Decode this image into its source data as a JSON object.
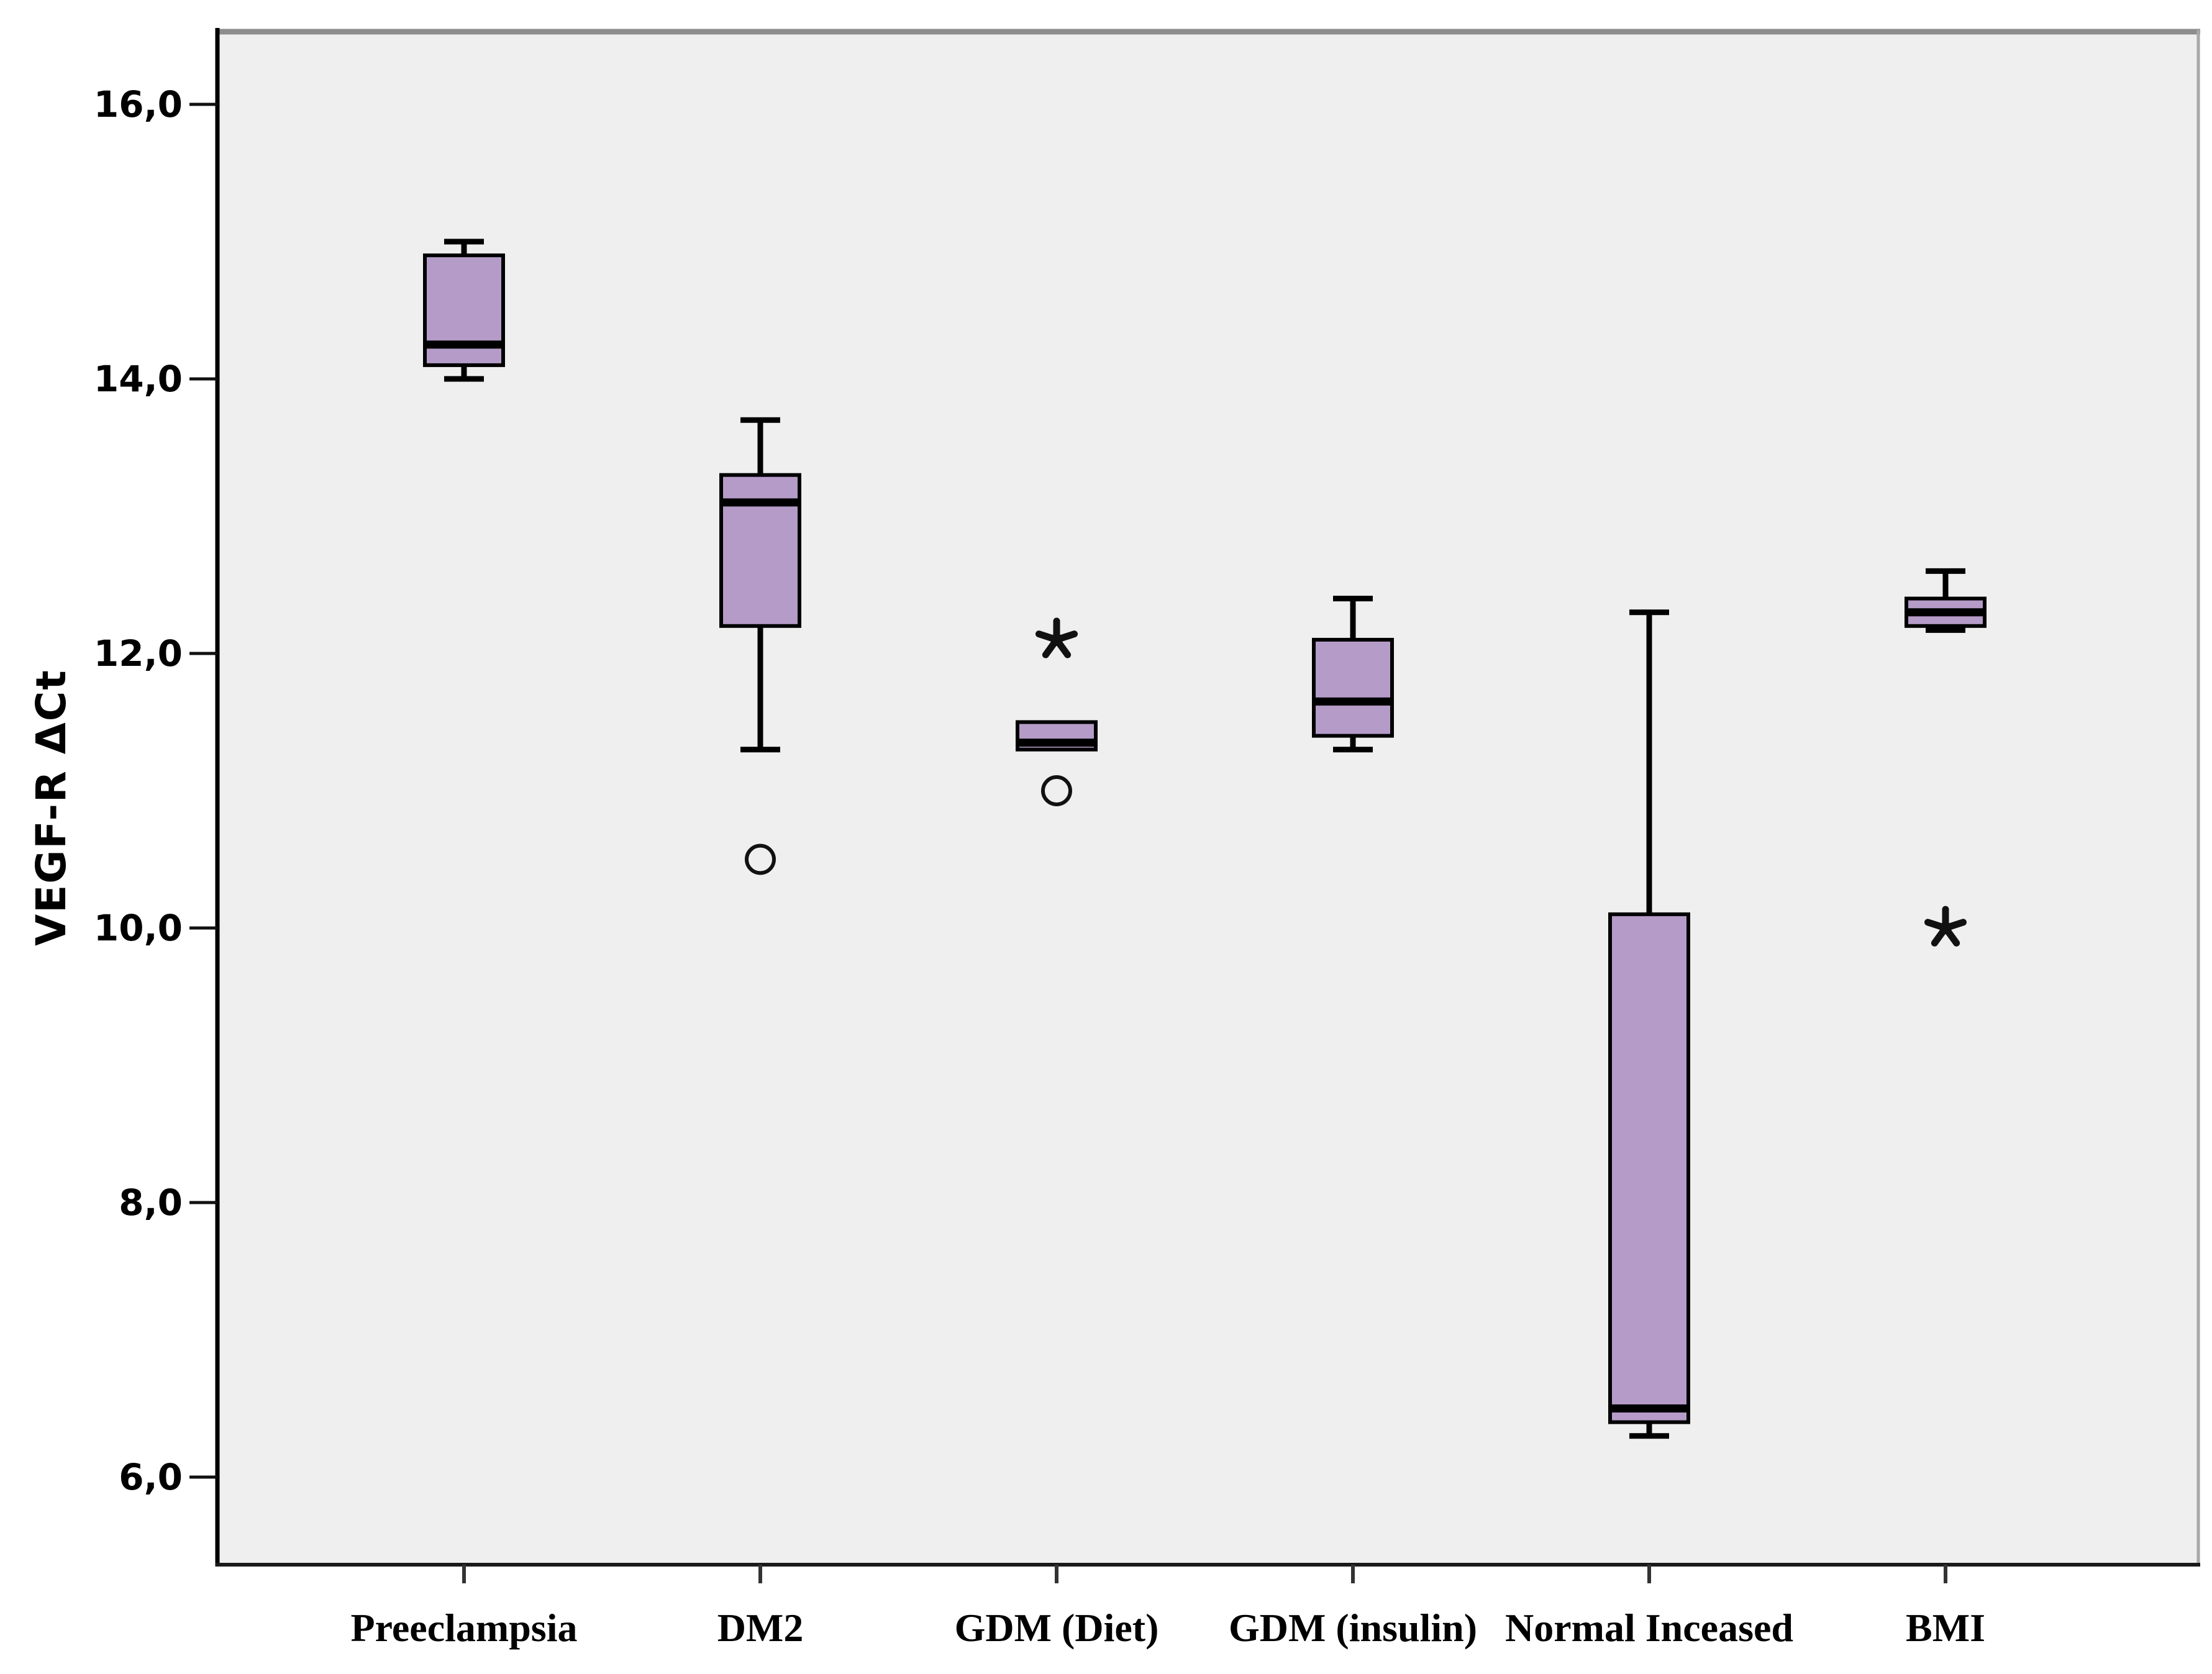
{
  "page": {
    "background": "#ffffff",
    "plot_background": "#efefef"
  },
  "chart_data": {
    "type": "boxplot",
    "title": "",
    "xlabel": "",
    "ylabel": "VEGF-R ΔCt",
    "ylim": [
      5.35,
      16.55
    ],
    "yticks": [
      6,
      8,
      10,
      12,
      14,
      16
    ],
    "ytick_labels": [
      "6,0",
      "8,0",
      "10,0",
      "12,0",
      "14,0",
      "16,0"
    ],
    "decimal_separator": ",",
    "grid": "off",
    "legend": "none",
    "categories": [
      "Preeclampsia",
      "DM2",
      "GDM (Diet)",
      "GDM (insulin)",
      "Normal Inceased",
      "BMI"
    ],
    "series": [
      {
        "name": "Preeclampsia",
        "whisker_low": 14.0,
        "q1": 14.1,
        "median": 14.25,
        "q3": 14.9,
        "whisker_high": 15.0,
        "outliers": []
      },
      {
        "name": "DM2",
        "whisker_low": 11.3,
        "q1": 12.2,
        "median": 13.1,
        "q3": 13.3,
        "whisker_high": 13.7,
        "outliers": [
          {
            "symbol": "circle",
            "value": 10.5
          }
        ]
      },
      {
        "name": "GDM (Diet)",
        "whisker_low": 11.3,
        "q1": 11.3,
        "median": 11.35,
        "q3": 11.5,
        "whisker_high": 11.5,
        "outliers": [
          {
            "symbol": "star",
            "value": 12.1
          },
          {
            "symbol": "circle",
            "value": 11.0
          }
        ]
      },
      {
        "name": "GDM (insulin)",
        "whisker_low": 11.3,
        "q1": 11.4,
        "median": 11.65,
        "q3": 12.1,
        "whisker_high": 12.4,
        "outliers": []
      },
      {
        "name": "Normal Inceased",
        "whisker_low": 6.3,
        "q1": 6.4,
        "median": 6.5,
        "q3": 10.1,
        "whisker_high": 12.3,
        "outliers": []
      },
      {
        "name": "BMI",
        "whisker_low": 12.17,
        "q1": 12.2,
        "median": 12.3,
        "q3": 12.4,
        "whisker_high": 12.6,
        "outliers": [
          {
            "symbol": "star",
            "value": 10.0
          }
        ]
      }
    ],
    "colors": {
      "box_fill": "#b59bc8",
      "box_border": "#000000",
      "median": "#000000",
      "whisker": "#000000",
      "outlier": "#111111",
      "axis_left": "#000000",
      "axis_bottom": "#1a1a1a",
      "frame_top": "#8d8d8d",
      "frame_right": "#a8a8a8",
      "tick": "#111111"
    }
  }
}
